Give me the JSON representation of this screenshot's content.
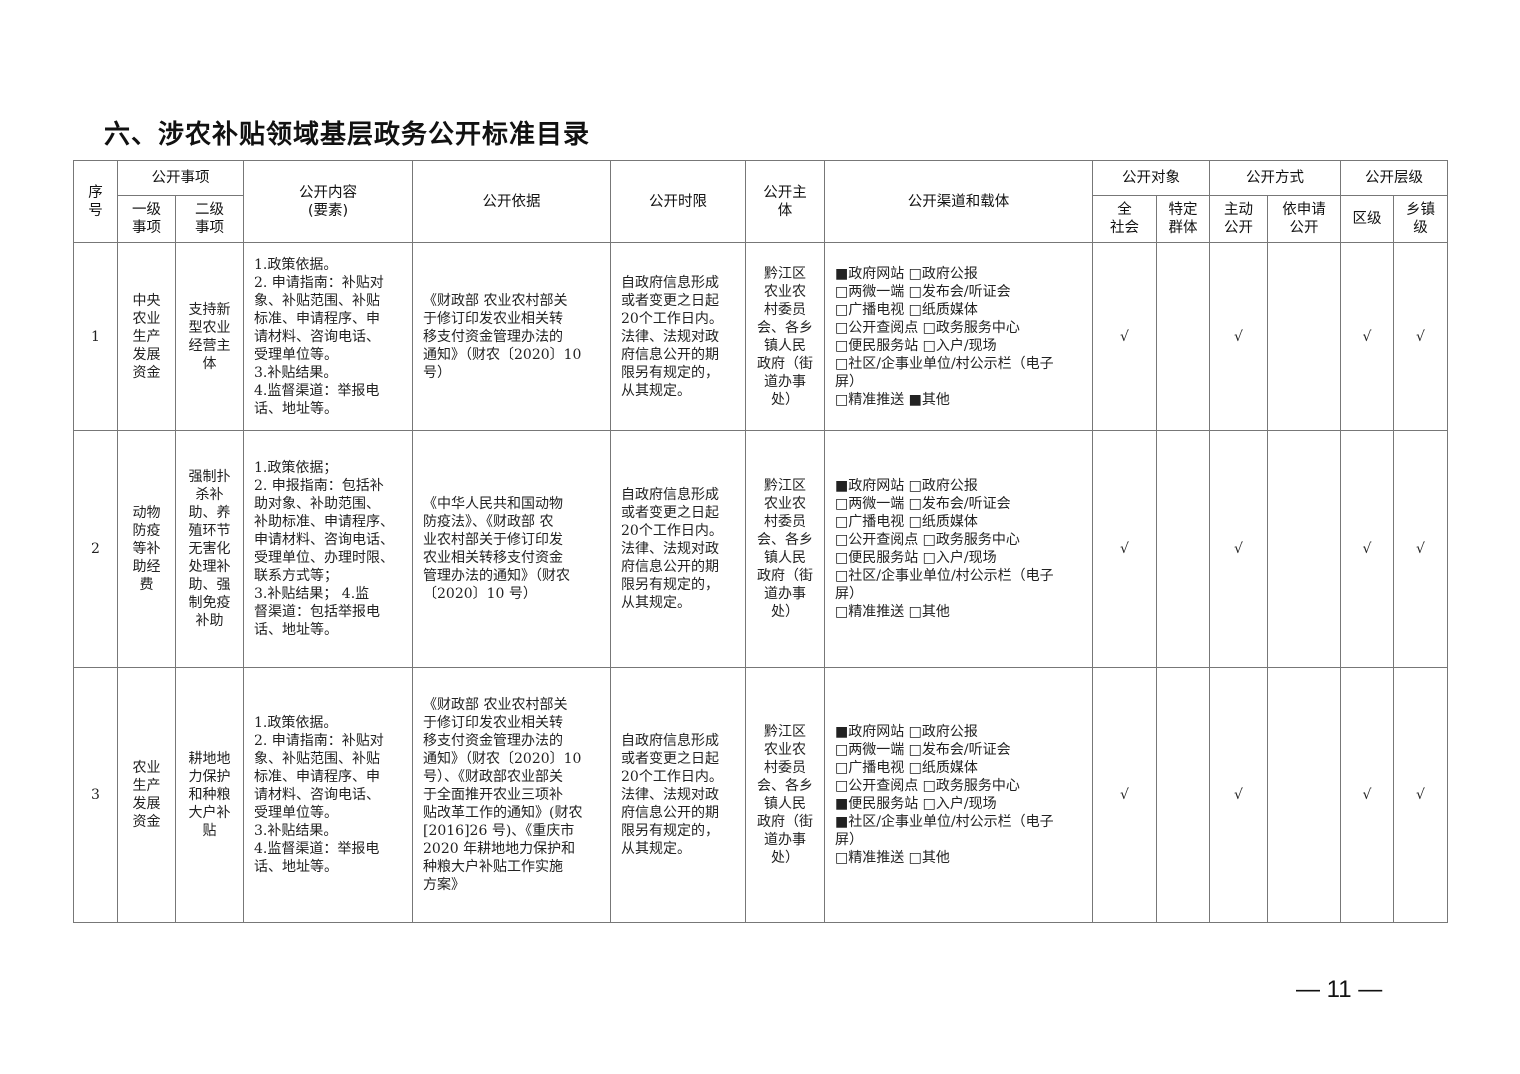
{
  "title": "六、涉农补贴领域基层政务公开标准目录",
  "header": {
    "seq": "序\n号",
    "matter": "公开事项",
    "level1": "一级\n事项",
    "level2": "二级\n事项",
    "content": "公开内容\n(要素)",
    "basis": "公开依据",
    "time": "公开时限",
    "subject": "公开主\n体",
    "channels": "公开渠道和载体",
    "target": "公开对象",
    "all": "全\n社会",
    "specific": "特定\n群体",
    "method": "公开方式",
    "active": "主动\n公开",
    "apply": "依申请\n公开",
    "level": "公开层级",
    "district": "区级",
    "town": "乡镇\n级"
  },
  "rows": [
    {
      "seq": "1",
      "level1": "中央\n农业\n生产\n发展\n资金",
      "level2": "支持新\n型农业\n经营主\n体",
      "content": "1.政策依据。\n2. 申请指南：补贴对\n象、补贴范围、补贴\n标准、申请程序、申\n请材料、咨询电话、\n受理单位等。\n3.补贴结果。\n4.监督渠道：举报电\n话、地址等。",
      "basis": "《财政部  农业农村部关\n于修订印发农业相关转\n移支付资金管理办法的\n通知》（财农〔2020〕10\n号）",
      "time": "自政府信息形成\n或者变更之日起\n20个工作日内。\n法律、法规对政\n府信息公开的期\n限另有规定的，\n从其规定。",
      "subject": "黔江区\n农业农\n村委员\n会、各乡\n镇人民\n政府（街\n道办事\n处）",
      "channels": "■政府网站        □政府公报\n□两微一端        □发布会/听证会\n□广播电视        □纸质媒体\n□公开查阅点    □政务服务中心\n□便民服务站    □入户/现场\n□社区/企事业单位/村公示栏（电子\n屏）\n□精准推送        ■其他",
      "all": "√",
      "specific": "",
      "active": "√",
      "apply": "",
      "district": "√",
      "town": "√"
    },
    {
      "seq": "2",
      "level1": "动物\n防疫\n等补\n助经\n费",
      "level2": "强制扑\n杀补\n助、养\n殖环节\n无害化\n处理补\n助、强\n制免疫\n补助",
      "content": "1.政策依据；\n2. 申报指南：包括补\n助对象、补助范围、\n补助标准、申请程序、\n申请材料、咨询电话、\n受理单位、办理时限、\n联系方式等；\n3.补贴结果；       4.监\n督渠道：包括举报电\n话、地址等。",
      "basis": "《中华人民共和国动物\n防疫法》、《财政部  农\n业农村部关于修订印发\n农业相关转移支付资金\n管理办法的通知》（财农\n〔2020〕10 号）",
      "time": "自政府信息形成\n或者变更之日起\n20个工作日内。\n法律、法规对政\n府信息公开的期\n限另有规定的，\n从其规定。",
      "subject": "黔江区\n农业农\n村委员\n会、各乡\n镇人民\n政府（街\n道办事\n处）",
      "channels": "■政府网站        □政府公报\n□两微一端        □发布会/听证会\n□广播电视        □纸质媒体\n□公开查阅点    □政务服务中心\n□便民服务站    □入户/现场\n□社区/企事业单位/村公示栏（电子\n屏）\n□精准推送        □其他",
      "all": "√",
      "specific": "",
      "active": "√",
      "apply": "",
      "district": "√",
      "town": "√"
    },
    {
      "seq": "3",
      "level1": "农业\n生产\n发展\n资金",
      "level2": "耕地地\n力保护\n和种粮\n大户补\n贴",
      "content": "1.政策依据。\n2. 申请指南：补贴对\n象、补贴范围、补贴\n标准、申请程序、申\n请材料、咨询电话、\n受理单位等。\n3.补贴结果。\n4.监督渠道：举报电\n话、地址等。",
      "basis": "《财政部  农业农村部关\n于修订印发农业相关转\n移支付资金管理办法的\n通知》（财农〔2020〕10\n号）、《财政部农业部关\n于全面推开农业三项补\n贴改革工作的通知》(财农\n[2016]26 号)、《重庆市\n2020 年耕地地力保护和\n种粮大户补贴工作实施\n方案》",
      "time": "自政府信息形成\n或者变更之日起\n20个工作日内。\n法律、法规对政\n府信息公开的期\n限另有规定的，\n从其规定。",
      "subject": "黔江区\n农业农\n村委员\n会、各乡\n镇人民\n政府（街\n道办事\n处）",
      "channels": "■政府网站        □政府公报\n□两微一端        □发布会/听证会\n□广播电视        □纸质媒体\n□公开查阅点  □政务服务中心\n■便民服务站    □入户/现场\n■社区/企事业单位/村公示栏（电子\n屏）\n□精准推送        □其他",
      "all": "√",
      "specific": "",
      "active": "√",
      "apply": "",
      "district": "√",
      "town": "√"
    }
  ],
  "page_number": "— 11 —"
}
